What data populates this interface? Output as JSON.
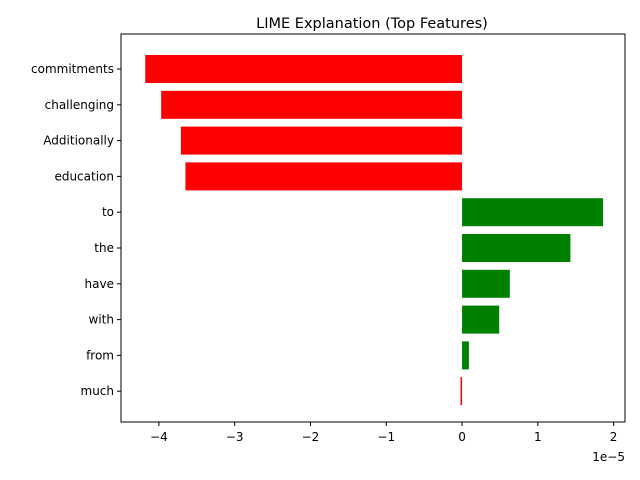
{
  "chart_data": {
    "type": "bar",
    "orientation": "horizontal",
    "title": "LIME Explanation (Top Features)",
    "xlabel": "",
    "ylabel": "",
    "x_offset_label": "1e−5",
    "xlim": [
      -4.5,
      2.15
    ],
    "x_ticks": [
      -4,
      -3,
      -2,
      -1,
      0,
      1,
      2
    ],
    "x_tick_labels": [
      "−4",
      "−3",
      "−2",
      "−1",
      "0",
      "1",
      "2"
    ],
    "value_scale": 1e-05,
    "categories": [
      "commitments",
      "challenging",
      "Additionally",
      "education",
      "to",
      "the",
      "have",
      "with",
      "from",
      "much"
    ],
    "values": [
      -4.18,
      -3.97,
      -3.71,
      -3.65,
      1.86,
      1.43,
      0.63,
      0.49,
      0.09,
      -0.02
    ],
    "colors": {
      "positive": "#008000",
      "negative": "#ff0000"
    },
    "grid": false,
    "legend": "none"
  }
}
